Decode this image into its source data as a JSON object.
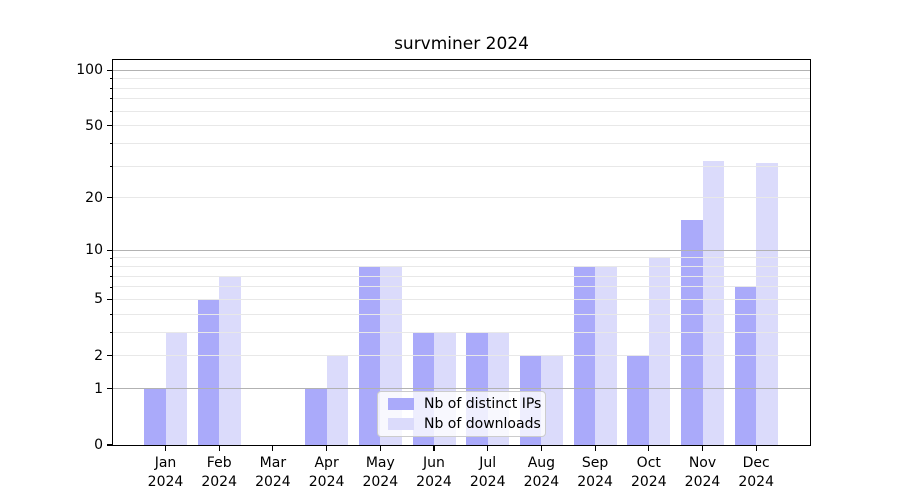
{
  "chart_data": {
    "type": "bar",
    "title": "survminer 2024",
    "categories": [
      "Jan\n2024",
      "Feb\n2024",
      "Mar\n2024",
      "Apr\n2024",
      "May\n2024",
      "Jun\n2024",
      "Jul\n2024",
      "Aug\n2024",
      "Sep\n2024",
      "Oct\n2024",
      "Nov\n2024",
      "Dec\n2024"
    ],
    "series": [
      {
        "name": "Nb of distinct IPs",
        "color": "#aaaafa",
        "values": [
          1,
          5,
          0,
          1,
          8,
          3,
          3,
          2,
          8,
          2,
          15,
          6
        ]
      },
      {
        "name": "Nb of downloads",
        "color": "#dbdbfb",
        "values": [
          3,
          7,
          0,
          2,
          8,
          3,
          3,
          2,
          8,
          9,
          32,
          31
        ]
      }
    ],
    "y_axis": {
      "scale": "log1p",
      "ylim": [
        0,
        113.3
      ],
      "tick_labels": [
        "0",
        "1",
        "2",
        "5",
        "10",
        "20",
        "50",
        "100"
      ],
      "tick_values": [
        0,
        1,
        2,
        5,
        10,
        20,
        50,
        100
      ],
      "major_gridlines": [
        1,
        10,
        100
      ],
      "minor_gridlines": [
        2,
        3,
        4,
        5,
        6,
        7,
        8,
        9,
        20,
        30,
        40,
        50,
        60,
        70,
        80,
        90
      ]
    },
    "xlabel": "",
    "ylabel": "",
    "grid": "horizontal, drawn over bars",
    "legend_position": "inside bottom-center",
    "colors": {
      "major_grid": "#b2b2b2",
      "minor_grid": "#e8e8e8",
      "axis": "#000000",
      "background": "#ffffff",
      "text": "#000000"
    }
  }
}
